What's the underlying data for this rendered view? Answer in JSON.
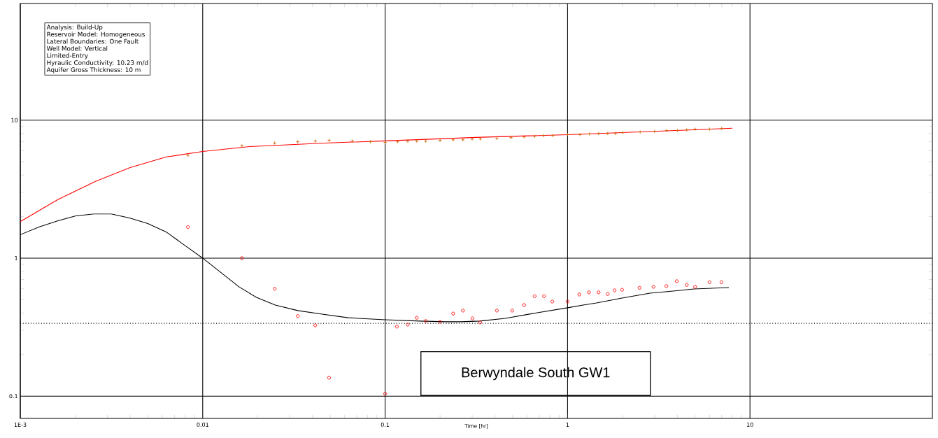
{
  "chart_data": {
    "type": "line",
    "xlabel": "Time [hr]",
    "annotations": [
      "Analysis:  Build-Up",
      "Reservoir Model: Homogeneous",
      "Lateral Boundaries:  One Fault",
      "Well Model:  Vertical",
      "Limited-Entry",
      "Hyraulic Conductivity: 10.23 m/d",
      "Aquifer Gross Thickness: 10 m",
      "Berwyndale South GW1"
    ],
    "log": "xy",
    "grid": true,
    "xlim": [
      0.001,
      100
    ],
    "ylim": [
      0.069,
      70
    ],
    "xticks": [
      {
        "value": 0.001,
        "label": "1E-3"
      },
      0.01,
      0.1,
      1,
      10
    ],
    "yticks": [
      0.1,
      1,
      10
    ],
    "ref_lines": [
      {
        "axis": "y",
        "value": 0.337,
        "color": "#000000",
        "line_style": "dotted"
      }
    ],
    "series": [
      {
        "color": "#ff0000",
        "marker": "none",
        "line_style": "solid",
        "x": [
          0.001,
          0.0016,
          0.00257,
          0.004,
          0.00627,
          0.01,
          0.0181,
          0.0465,
          0.1,
          0.315,
          1,
          8
        ],
        "values": [
          1.84,
          2.65,
          3.59,
          4.53,
          5.4,
          5.93,
          6.43,
          6.82,
          7.07,
          7.5,
          7.85,
          8.73
        ]
      },
      {
        "color": "#000000",
        "marker": "none",
        "line_style": "solid",
        "x": [
          0.001,
          0.00128,
          0.0016,
          0.002,
          0.00253,
          0.00315,
          0.004,
          0.005,
          0.0063,
          0.0079,
          0.01,
          0.0158,
          0.0197,
          0.025,
          0.0332,
          0.0445,
          0.0627,
          0.1,
          0.155,
          0.214,
          0.26,
          0.33,
          0.456,
          0.643,
          1,
          1.25,
          1.44,
          1.99,
          2.83,
          3.79,
          4.93,
          7.67
        ],
        "values": [
          1.48,
          1.69,
          1.86,
          2.02,
          2.09,
          2.09,
          1.95,
          1.78,
          1.55,
          1.25,
          1.0,
          0.62,
          0.52,
          0.457,
          0.417,
          0.394,
          0.37,
          0.358,
          0.35,
          0.346,
          0.346,
          0.35,
          0.366,
          0.397,
          0.437,
          0.46,
          0.474,
          0.514,
          0.558,
          0.578,
          0.598,
          0.612
        ]
      },
      {
        "type": "scatter",
        "color": "#cc6600",
        "marker": "cross",
        "x": [
          0.0083,
          0.0164,
          0.0248,
          0.0332,
          0.0414,
          0.0493,
          0.066,
          0.083,
          0.1,
          0.117,
          0.133,
          0.149,
          0.167,
          0.2,
          0.236,
          0.267,
          0.3,
          0.332,
          0.41,
          0.49,
          0.578,
          0.66,
          0.74,
          0.83,
          1.0,
          1.17,
          1.32,
          1.48,
          1.66,
          1.83,
          2.0,
          2.5,
          3.0,
          3.5,
          4.0,
          4.5,
          5.0,
          6.0,
          7.0
        ],
        "values": [
          5.56,
          6.51,
          6.82,
          6.97,
          7.05,
          7.14,
          7.05,
          6.97,
          6.9,
          6.97,
          7.05,
          7.05,
          7.05,
          7.14,
          7.2,
          7.2,
          7.3,
          7.3,
          7.38,
          7.47,
          7.56,
          7.64,
          7.73,
          7.73,
          7.85,
          7.85,
          7.94,
          8.0,
          8.0,
          8.0,
          8.1,
          8.2,
          8.3,
          8.4,
          8.4,
          8.5,
          8.6,
          8.6,
          8.7
        ]
      },
      {
        "type": "scatter",
        "color": "#ff0000",
        "marker": "circle",
        "x": [
          0.0083,
          0.0164,
          0.0248,
          0.0332,
          0.0414,
          0.0493,
          0.1,
          0.116,
          0.133,
          0.149,
          0.167,
          0.2,
          0.236,
          0.267,
          0.301,
          0.332,
          0.41,
          0.497,
          0.578,
          0.66,
          0.743,
          0.825,
          1.0,
          1.16,
          1.31,
          1.48,
          1.66,
          1.81,
          1.99,
          2.48,
          2.96,
          3.48,
          3.97,
          4.5,
          5.0,
          6.0,
          6.98
        ],
        "values": [
          1.68,
          1.0,
          0.6,
          0.38,
          0.326,
          0.136,
          0.104,
          0.319,
          0.33,
          0.37,
          0.35,
          0.346,
          0.397,
          0.417,
          0.366,
          0.342,
          0.417,
          0.417,
          0.457,
          0.53,
          0.53,
          0.485,
          0.485,
          0.545,
          0.565,
          0.565,
          0.55,
          0.584,
          0.59,
          0.61,
          0.62,
          0.627,
          0.68,
          0.64,
          0.62,
          0.67,
          0.67
        ]
      }
    ]
  }
}
